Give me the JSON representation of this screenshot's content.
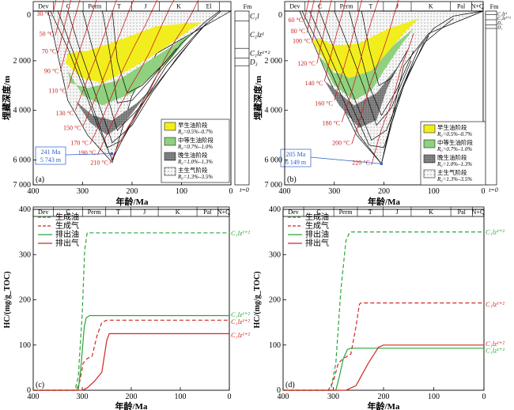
{
  "colors": {
    "early": "#f2ee1e",
    "mid": "#8fd17e",
    "late": "#6e6e6e",
    "gas": "#f6f6f6",
    "iso": "#cc2222",
    "green": "#2aa53a",
    "red": "#d22626",
    "blue": "#2a5fc8"
  },
  "chart_data": [
    {
      "id": "a",
      "type": "area",
      "label": "(a)",
      "xlabel": "年龄/Ma",
      "ylabel": "埋藏深度/m",
      "xlim": [
        400,
        0
      ],
      "ylim": [
        0,
        7000
      ],
      "xticks": [
        400,
        300,
        200,
        100,
        0
      ],
      "yticks": [
        0,
        2000,
        4000,
        6000,
        7000
      ],
      "periods": [
        {
          "name": "Dev",
          "from": 400,
          "to": 359
        },
        {
          "name": "C",
          "from": 359,
          "to": 299
        },
        {
          "name": "Perm",
          "from": 299,
          "to": 252
        },
        {
          "name": "T",
          "from": 252,
          "to": 201
        },
        {
          "name": "J",
          "from": 201,
          "to": 145
        },
        {
          "name": "K",
          "from": 145,
          "to": 66
        },
        {
          "name": "El",
          "from": 66,
          "to": 23
        }
      ],
      "isotherms": [
        {
          "label": "30 °C",
          "age": 360,
          "depth": 100
        },
        {
          "label": "50 °C",
          "age": 355,
          "depth": 900
        },
        {
          "label": "70 °C",
          "age": 350,
          "depth": 1600
        },
        {
          "label": "90 °C",
          "age": 345,
          "depth": 2400
        },
        {
          "label": "110 °C",
          "age": 330,
          "depth": 3200
        },
        {
          "label": "130 °C",
          "age": 315,
          "depth": 4100
        },
        {
          "label": "150 °C",
          "age": 300,
          "depth": 4700
        },
        {
          "label": "170 °C",
          "age": 285,
          "depth": 5300
        },
        {
          "label": "190 °C",
          "age": 270,
          "depth": 5700
        },
        {
          "label": "210 °C",
          "age": 245,
          "depth": 6100
        }
      ],
      "callout": {
        "age_text": "241 Ma",
        "depth_text": "5 743 m",
        "age": 241,
        "depth": 5743
      },
      "legend": [
        {
          "key": "early",
          "title": "早生油阶段",
          "range": "R₀=0.5%–0.7%"
        },
        {
          "key": "mid",
          "title": "中等生油阶段",
          "range": "R₀=0.7%–1.0%"
        },
        {
          "key": "late",
          "title": "晚生油阶段",
          "range": "R₀=1.0%–1.3%"
        },
        {
          "key": "gas",
          "title": "主生气阶段",
          "range": "R₀=1.3%–3.5%"
        }
      ],
      "strat_header": "Fm",
      "strat_footer": "t=0",
      "strat_units": [
        {
          "name": "C₁l",
          "top": 0,
          "bottom": 400
        },
        {
          "name": "C₁lz¹",
          "top": 400,
          "bottom": 1500
        },
        {
          "name": "C₁lz¹⁺²",
          "top": 1500,
          "bottom": 1900
        },
        {
          "name": "D₃",
          "top": 1900,
          "bottom": 2200
        }
      ]
    },
    {
      "id": "b",
      "type": "area",
      "label": "(b)",
      "xlabel": "年龄/Ma",
      "ylabel": "埋藏深度/m",
      "xlim": [
        400,
        0
      ],
      "ylim": [
        0,
        7000
      ],
      "xticks": [
        400,
        300,
        200,
        100,
        0
      ],
      "yticks": [
        0,
        2000,
        4000,
        6000,
        7000
      ],
      "periods": [
        {
          "name": "Dev",
          "from": 400,
          "to": 359
        },
        {
          "name": "C",
          "from": 359,
          "to": 299
        },
        {
          "name": "Perm",
          "from": 299,
          "to": 252
        },
        {
          "name": "T",
          "from": 252,
          "to": 201
        },
        {
          "name": "J",
          "from": 201,
          "to": 145
        },
        {
          "name": "K",
          "from": 145,
          "to": 66
        },
        {
          "name": "Pal",
          "from": 66,
          "to": 23
        },
        {
          "name": "N+Q",
          "from": 23,
          "to": 0
        }
      ],
      "isotherms": [
        {
          "label": "60 °C",
          "age": 360,
          "depth": 350
        },
        {
          "label": "80 °C",
          "age": 355,
          "depth": 800
        },
        {
          "label": "100 °C",
          "age": 345,
          "depth": 1200
        },
        {
          "label": "120 °C",
          "age": 335,
          "depth": 2100
        },
        {
          "label": "140 °C",
          "age": 320,
          "depth": 2900
        },
        {
          "label": "160 °C",
          "age": 300,
          "depth": 3700
        },
        {
          "label": "180 °C",
          "age": 285,
          "depth": 4500
        },
        {
          "label": "200 °C",
          "age": 265,
          "depth": 5300
        },
        {
          "label": "220 °C",
          "age": 225,
          "depth": 6100
        }
      ],
      "callout": {
        "age_text": "205 Ma",
        "depth_text": "6 149 m",
        "age": 205,
        "depth": 6149
      },
      "legend": [
        {
          "key": "early",
          "title": "早生油阶段",
          "range": "R₀=0.5%–0.7%"
        },
        {
          "key": "mid",
          "title": "中等生油阶段",
          "range": "R₀=0.7%–1.0%"
        },
        {
          "key": "late",
          "title": "晚生油阶段",
          "range": "R₀=1.0%–1.3%"
        },
        {
          "key": "gas",
          "title": "主生气阶段",
          "range": "R₀=1.3%–3.5%"
        }
      ],
      "strat_header": "Fm",
      "strat_footer": "t=0",
      "strat_units": [
        {
          "name": "C₁lz¹",
          "top": 0,
          "bottom": 150
        },
        {
          "name": "C₁lz¹⁺²",
          "top": 150,
          "bottom": 350
        },
        {
          "name": "D₃",
          "top": 350,
          "bottom": 550
        },
        {
          "name": "D₂",
          "top": 550,
          "bottom": 700
        }
      ]
    },
    {
      "id": "c",
      "type": "line",
      "label": "(c)",
      "xlabel": "年龄/Ma",
      "ylabel": "HC/(mg/g_TOC)",
      "xlim": [
        400,
        0
      ],
      "ylim": [
        0,
        400
      ],
      "xticks": [
        400,
        300,
        200,
        100,
        0
      ],
      "yticks": [
        0,
        100,
        200,
        300,
        400
      ],
      "periods": [
        {
          "name": "Dev",
          "from": 400,
          "to": 359
        },
        {
          "name": "C",
          "from": 359,
          "to": 299
        },
        {
          "name": "Perm",
          "from": 299,
          "to": 252
        },
        {
          "name": "T",
          "from": 252,
          "to": 201
        },
        {
          "name": "J",
          "from": 201,
          "to": 145
        },
        {
          "name": "K",
          "from": 145,
          "to": 66
        },
        {
          "name": "Pal",
          "from": 66,
          "to": 23
        },
        {
          "name": "N+Q",
          "from": 23,
          "to": 0
        }
      ],
      "series": [
        {
          "name": "生成油",
          "dash": true,
          "color": "green",
          "x": [
            400,
            315,
            308,
            300,
            295,
            290,
            285,
            0
          ],
          "y": [
            0,
            0,
            30,
            170,
            310,
            348,
            348,
            348
          ]
        },
        {
          "name": "生成气",
          "dash": true,
          "color": "red",
          "x": [
            400,
            312,
            305,
            298,
            290,
            280,
            270,
            260,
            250,
            0
          ],
          "y": [
            0,
            0,
            20,
            60,
            70,
            75,
            120,
            150,
            155,
            155
          ]
        },
        {
          "name": "排出油",
          "dash": false,
          "color": "green",
          "x": [
            400,
            308,
            302,
            296,
            292,
            285,
            0
          ],
          "y": [
            0,
            0,
            60,
            140,
            160,
            165,
            165
          ]
        },
        {
          "name": "排出气",
          "dash": false,
          "color": "red",
          "x": [
            400,
            300,
            290,
            275,
            260,
            250,
            245,
            0
          ],
          "y": [
            0,
            0,
            5,
            20,
            40,
            110,
            125,
            125
          ]
        }
      ],
      "annotations": [
        {
          "text": "C₁lz¹⁺²",
          "y": 348,
          "color": "green"
        },
        {
          "text": "C₁lz¹⁺²",
          "y": 168,
          "color": "green"
        },
        {
          "text": "C₁lz¹⁺²",
          "y": 152,
          "color": "red"
        },
        {
          "text": "C₁lz¹⁺²",
          "y": 122,
          "color": "red"
        }
      ]
    },
    {
      "id": "d",
      "type": "line",
      "label": "(d)",
      "xlabel": "年龄/Ma",
      "ylabel": "HC/(mg/g_TOC)",
      "xlim": [
        400,
        0
      ],
      "ylim": [
        0,
        400
      ],
      "xticks": [
        400,
        300,
        200,
        100,
        0
      ],
      "yticks": [
        0,
        100,
        200,
        300,
        400
      ],
      "periods": [
        {
          "name": "Dev",
          "from": 400,
          "to": 359
        },
        {
          "name": "C",
          "from": 359,
          "to": 299
        },
        {
          "name": "Perm",
          "from": 299,
          "to": 252
        },
        {
          "name": "T",
          "from": 252,
          "to": 201
        },
        {
          "name": "J",
          "from": 201,
          "to": 145
        },
        {
          "name": "K",
          "from": 145,
          "to": 66
        },
        {
          "name": "Pal",
          "from": 66,
          "to": 23
        },
        {
          "name": "N+Q",
          "from": 23,
          "to": 0
        }
      ],
      "series": [
        {
          "name": "生成油",
          "dash": true,
          "color": "green",
          "x": [
            400,
            305,
            295,
            285,
            275,
            268,
            265,
            0
          ],
          "y": [
            0,
            0,
            60,
            220,
            330,
            348,
            350,
            350
          ]
        },
        {
          "name": "生成气",
          "dash": true,
          "color": "red",
          "x": [
            400,
            310,
            300,
            290,
            280,
            265,
            255,
            248,
            245,
            0
          ],
          "y": [
            0,
            0,
            20,
            60,
            70,
            80,
            140,
            190,
            193,
            193
          ]
        },
        {
          "name": "排出油",
          "dash": false,
          "color": "green",
          "x": [
            400,
            295,
            288,
            280,
            272,
            265,
            0
          ],
          "y": [
            0,
            0,
            30,
            70,
            90,
            93,
            93
          ]
        },
        {
          "name": "排出气",
          "dash": false,
          "color": "red",
          "x": [
            400,
            275,
            265,
            255,
            245,
            230,
            210,
            200,
            0
          ],
          "y": [
            0,
            0,
            5,
            10,
            30,
            60,
            95,
            100,
            100
          ]
        }
      ],
      "annotations": [
        {
          "text": "C₁lz¹⁺²",
          "y": 350,
          "color": "green"
        },
        {
          "text": "C₁lz¹⁺²",
          "y": 190,
          "color": "red"
        },
        {
          "text": "C₁lz¹⁺²",
          "y": 103,
          "color": "red"
        },
        {
          "text": "C₁lz¹⁺²",
          "y": 88,
          "color": "green"
        }
      ]
    }
  ]
}
